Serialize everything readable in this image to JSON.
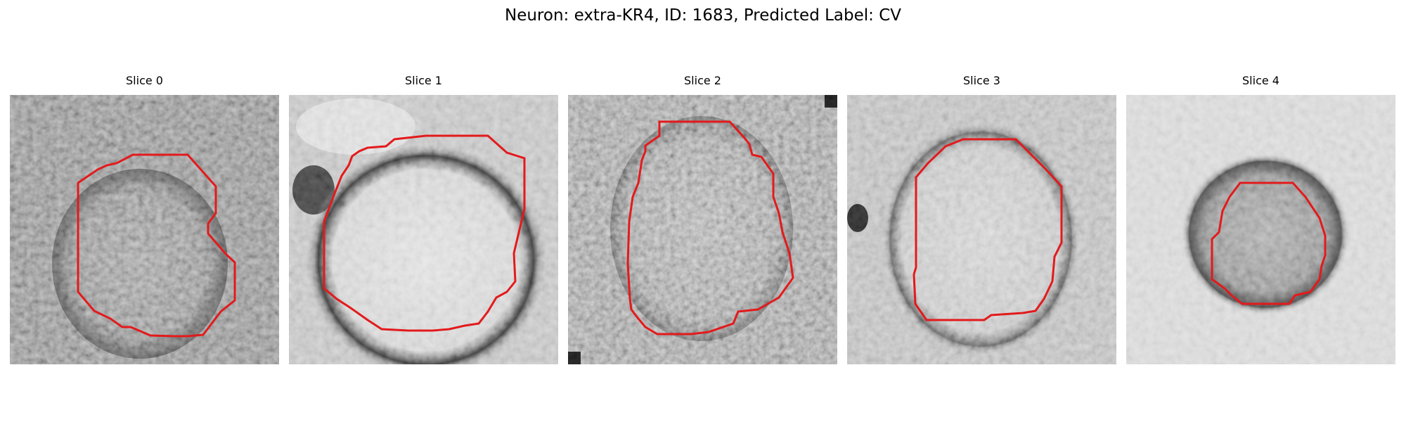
{
  "figure": {
    "title": "Neuron: extra-KR4, ID: 1683, Predicted Label: CV"
  },
  "outline_color": "#e31a1c",
  "panels": [
    {
      "title": "Slice 0"
    },
    {
      "title": "Slice 1"
    },
    {
      "title": "Slice 2"
    },
    {
      "title": "Slice 3"
    },
    {
      "title": "Slice 4"
    }
  ]
}
